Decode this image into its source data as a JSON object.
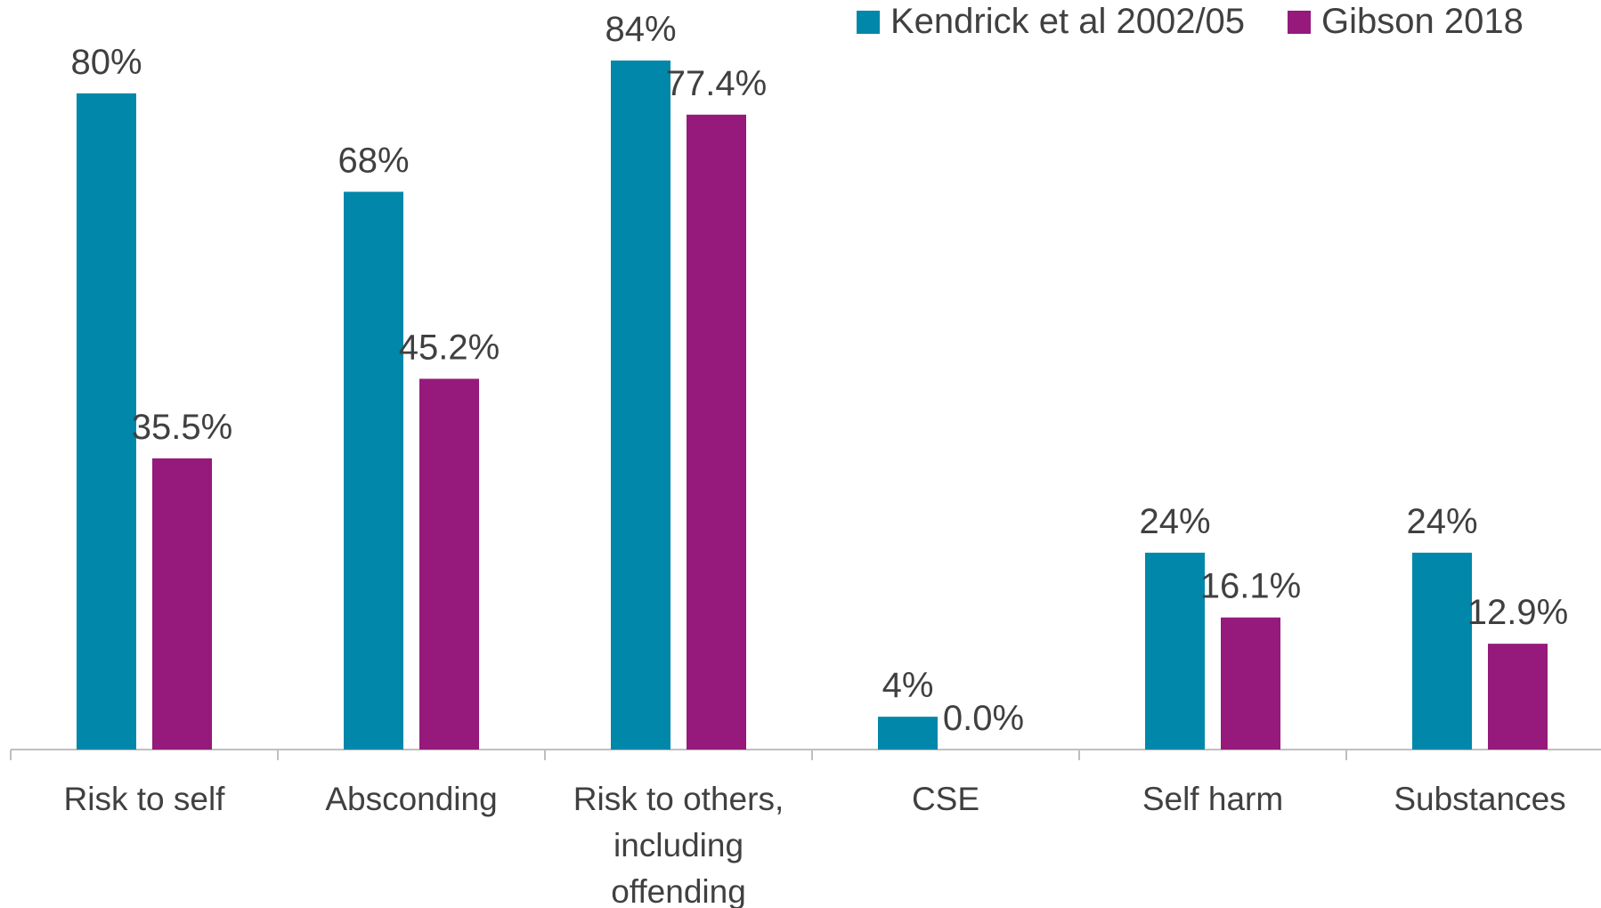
{
  "chart_data": {
    "type": "bar",
    "categories": [
      [
        "Risk to self"
      ],
      [
        "Absconding"
      ],
      [
        "Risk to others,",
        "including",
        "offending"
      ],
      [
        "CSE"
      ],
      [
        "Self harm"
      ],
      [
        "Substances"
      ]
    ],
    "series": [
      {
        "name": "Kendrick et al 2002/05",
        "color": "#0087AA",
        "values": [
          80,
          68,
          84,
          4,
          24,
          24
        ],
        "labels": [
          "80%",
          "68%",
          "84%",
          "4%",
          "24%",
          "24%"
        ]
      },
      {
        "name": "Gibson 2018",
        "color": "#951A7C",
        "values": [
          35.5,
          45.2,
          77.4,
          0.0,
          16.1,
          12.9
        ],
        "labels": [
          "35.5%",
          "45.2%",
          "77.4%",
          "0.0%",
          "16.1%",
          "12.9%"
        ]
      }
    ],
    "ylim": [
      0,
      84
    ],
    "grid": false,
    "legend_position": "top-right"
  }
}
